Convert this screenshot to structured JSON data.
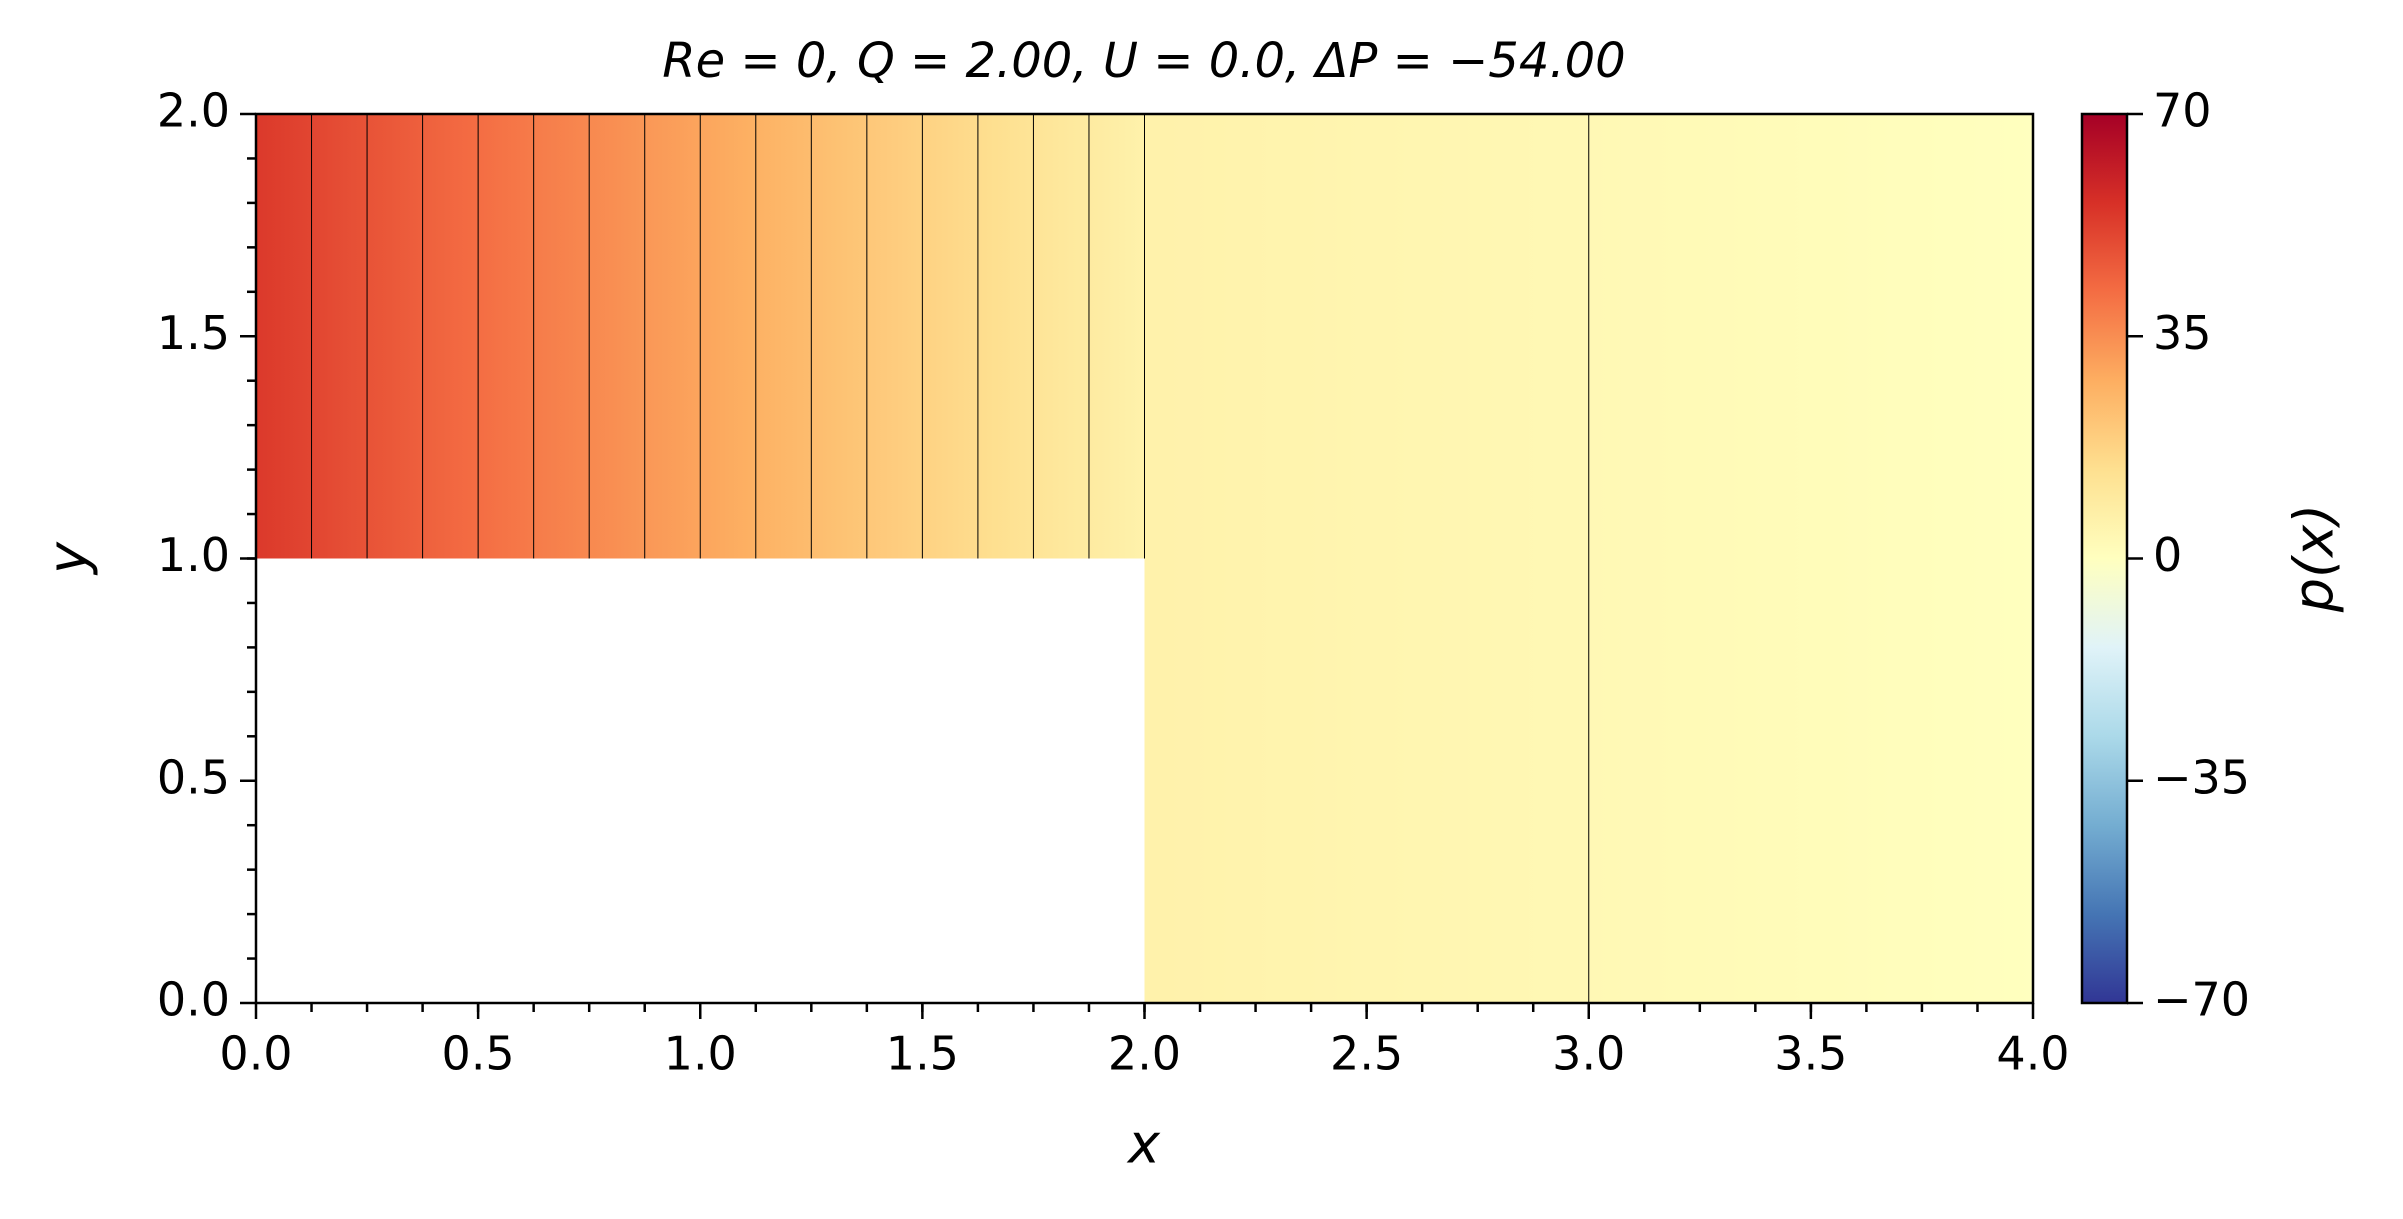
{
  "chart_data": {
    "type": "pressure_field",
    "title": "Re = 0, Q = 2.00, U = 0.0, ΔP = −54.00",
    "xlabel": "x",
    "ylabel": "y",
    "colorbar_label": "p(x)",
    "xlim": [
      0,
      4
    ],
    "ylim": [
      0,
      2
    ],
    "xticks": [
      {
        "value": 0,
        "label": "0.0"
      },
      0.5,
      {
        "value": 1,
        "label": "1.0"
      },
      1.5,
      {
        "value": 2,
        "label": "2.0"
      },
      2.5,
      {
        "value": 3,
        "label": "3.0"
      },
      3.5,
      {
        "value": 4,
        "label": "4.0"
      }
    ],
    "yticks": [
      {
        "value": 0,
        "label": "0.0"
      },
      0.5,
      {
        "value": 1,
        "label": "1.0"
      },
      1.5,
      {
        "value": 2,
        "label": "2.0"
      }
    ],
    "xminor_step": 0.125,
    "yminor_step": 0.1,
    "regions": [
      {
        "x": [
          0,
          2
        ],
        "y": [
          1,
          2
        ],
        "p": [
          54,
          6
        ]
      },
      {
        "x": [
          2,
          4
        ],
        "y": [
          0,
          2
        ],
        "p": [
          6,
          0
        ]
      }
    ],
    "contour_step": 3,
    "contour_color": "#000000",
    "clim": [
      -70,
      70
    ],
    "cticks": [
      {
        "value": -70,
        "label": "−70"
      },
      {
        "value": -35,
        "label": "−35"
      },
      0,
      35,
      70
    ],
    "colormap": [
      "#313695",
      "#4575b4",
      "#74add1",
      "#abd9e9",
      "#e0f3f8",
      "#ffffbf",
      "#fee090",
      "#fdae61",
      "#f46d43",
      "#d73027",
      "#a50026"
    ]
  }
}
